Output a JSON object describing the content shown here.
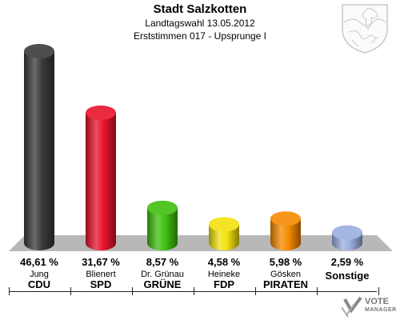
{
  "header": {
    "title": "Stadt Salzkotten",
    "subtitle": "Landtagswahl 13.05.2012",
    "subtitle2": "Erststimmen 017 - Upsprunge I"
  },
  "logo": {
    "line1": "VOTE",
    "line2": "MANAGER"
  },
  "crest_icon": "coat-of-arms-icon",
  "chart_data": {
    "type": "bar",
    "title": "Stadt Salzkotten",
    "subtitle": "Landtagswahl 13.05.2012 — Erststimmen 017 - Upsprunge I",
    "categories": [
      "CDU",
      "SPD",
      "GRÜNE",
      "FDP",
      "PIRATEN",
      "Sonstige"
    ],
    "candidates": [
      "Jung",
      "Blienert",
      "Dr. Grünau",
      "Heineke",
      "Gösken",
      ""
    ],
    "values": [
      46.61,
      31.67,
      8.57,
      4.58,
      5.98,
      2.59
    ],
    "labels": [
      "46,61 %",
      "31,67 %",
      "8,57 %",
      "4,58 %",
      "5,98 %",
      "2,59 %"
    ],
    "colors": [
      "#3a3a3a",
      "#e8122a",
      "#3fbf0f",
      "#f2e10f",
      "#f68a00",
      "#9aaee0"
    ],
    "unit": "%",
    "ylim": [
      0,
      50
    ],
    "grid": false,
    "legend": "none"
  }
}
